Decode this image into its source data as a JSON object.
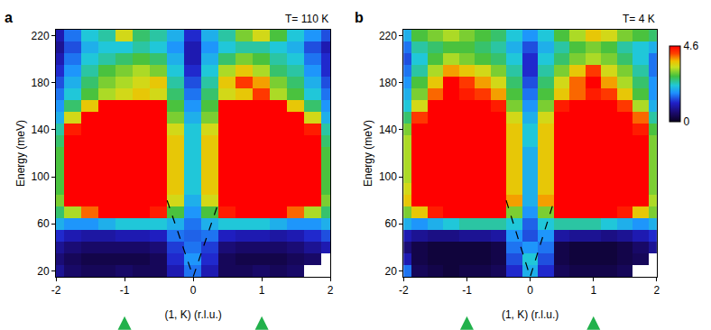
{
  "chart_data": [
    {
      "type": "heatmap",
      "panel_label": "a",
      "annotation": "T= 110 K",
      "x_label": "(1, K) (r.l.u.)",
      "y_label": "Energy (meV)",
      "xlim": [
        -2,
        2
      ],
      "xticks": [
        -2,
        -1,
        0,
        1,
        2
      ],
      "ylim": [
        15,
        225
      ],
      "yticks": [
        20,
        60,
        100,
        140,
        180,
        220
      ],
      "x": [
        -2,
        -1.75,
        -1.5,
        -1.25,
        -1,
        -0.75,
        -0.5,
        -0.25,
        0,
        0.25,
        0.5,
        0.75,
        1,
        1.25,
        1.5,
        1.75,
        2
      ],
      "y": [
        20,
        30,
        40,
        50,
        60,
        70,
        80,
        90,
        100,
        110,
        120,
        130,
        140,
        150,
        160,
        170,
        180,
        190,
        200,
        210,
        220
      ],
      "z": [
        [
          0.8,
          0.5,
          0.4,
          0.4,
          0.5,
          0.4,
          0.4,
          1.0,
          1.6,
          1.0,
          0.4,
          0.4,
          0.5,
          0.4,
          0.5,
          null,
          null
        ],
        [
          0.6,
          0.4,
          0.3,
          0.3,
          0.3,
          0.3,
          0.4,
          1.2,
          1.8,
          1.2,
          0.4,
          0.3,
          0.3,
          0.3,
          0.4,
          0.5,
          null
        ],
        [
          0.8,
          0.6,
          0.5,
          0.5,
          0.5,
          0.5,
          0.6,
          1.3,
          1.6,
          1.3,
          0.6,
          0.5,
          0.5,
          0.5,
          0.6,
          0.8,
          1.0
        ],
        [
          1.2,
          1.0,
          0.9,
          0.9,
          1.0,
          1.0,
          1.1,
          1.6,
          1.5,
          1.6,
          1.1,
          1.0,
          1.0,
          0.9,
          1.0,
          1.2,
          1.4
        ],
        [
          2.0,
          1.8,
          1.8,
          2.0,
          2.2,
          2.2,
          2.2,
          2.0,
          1.6,
          2.0,
          2.2,
          2.2,
          2.2,
          2.0,
          1.8,
          1.8,
          2.0
        ],
        [
          2.6,
          3.2,
          4.0,
          4.6,
          4.6,
          4.6,
          4.4,
          2.8,
          1.8,
          2.8,
          4.4,
          4.6,
          4.6,
          4.6,
          4.0,
          3.2,
          2.6
        ],
        [
          3.0,
          4.6,
          4.6,
          4.6,
          4.6,
          4.6,
          4.6,
          3.4,
          2.0,
          3.4,
          4.6,
          4.6,
          4.6,
          4.6,
          4.6,
          4.6,
          3.0
        ],
        [
          2.8,
          4.6,
          4.6,
          4.6,
          4.6,
          4.6,
          4.6,
          3.6,
          2.2,
          3.6,
          4.6,
          4.6,
          4.6,
          4.6,
          4.6,
          4.6,
          2.8
        ],
        [
          2.8,
          4.6,
          4.6,
          4.6,
          4.6,
          4.6,
          4.6,
          3.6,
          2.2,
          3.6,
          4.6,
          4.6,
          4.6,
          4.6,
          4.6,
          4.6,
          2.8
        ],
        [
          2.8,
          4.6,
          4.6,
          4.6,
          4.6,
          4.6,
          4.6,
          3.6,
          2.2,
          3.6,
          4.6,
          4.6,
          4.6,
          4.6,
          4.6,
          4.6,
          2.8
        ],
        [
          2.8,
          4.6,
          4.6,
          4.6,
          4.6,
          4.6,
          4.6,
          3.6,
          2.2,
          3.6,
          4.6,
          4.6,
          4.6,
          4.6,
          4.6,
          4.6,
          2.8
        ],
        [
          2.6,
          4.6,
          4.6,
          4.6,
          4.6,
          4.6,
          4.6,
          3.6,
          2.2,
          3.6,
          4.6,
          4.6,
          4.6,
          4.6,
          4.6,
          4.6,
          2.6
        ],
        [
          2.4,
          4.4,
          4.6,
          4.6,
          4.6,
          4.6,
          4.6,
          3.4,
          2.2,
          3.4,
          4.6,
          4.6,
          4.6,
          4.6,
          4.6,
          4.4,
          2.4
        ],
        [
          2.0,
          3.4,
          4.6,
          4.6,
          4.6,
          4.6,
          4.6,
          3.0,
          2.0,
          3.0,
          4.6,
          4.6,
          4.6,
          4.6,
          4.6,
          3.4,
          2.0
        ],
        [
          1.8,
          2.6,
          3.6,
          4.6,
          4.6,
          4.6,
          4.6,
          2.8,
          1.8,
          2.8,
          4.6,
          4.6,
          4.6,
          4.6,
          3.6,
          2.6,
          1.8
        ],
        [
          1.6,
          2.2,
          2.8,
          3.2,
          3.4,
          3.6,
          3.4,
          2.6,
          1.6,
          2.6,
          3.4,
          3.6,
          4.2,
          3.2,
          2.8,
          2.2,
          1.6
        ],
        [
          1.4,
          2.0,
          2.6,
          3.0,
          3.2,
          3.4,
          3.6,
          2.4,
          1.4,
          2.4,
          3.6,
          4.2,
          3.8,
          3.0,
          2.6,
          2.0,
          1.4
        ],
        [
          1.2,
          1.8,
          2.4,
          2.8,
          3.0,
          3.2,
          3.0,
          2.2,
          1.2,
          2.2,
          3.2,
          3.6,
          3.2,
          2.6,
          2.4,
          1.8,
          1.2
        ],
        [
          1.0,
          1.6,
          2.2,
          2.4,
          2.6,
          2.8,
          2.6,
          2.0,
          1.0,
          2.0,
          2.6,
          3.0,
          2.8,
          2.4,
          2.2,
          1.6,
          1.2
        ],
        [
          0.8,
          1.4,
          2.0,
          2.2,
          2.2,
          2.4,
          2.2,
          1.8,
          1.0,
          1.8,
          2.2,
          2.4,
          2.4,
          2.2,
          2.0,
          1.4,
          1.0
        ],
        [
          1.0,
          1.6,
          2.2,
          2.4,
          3.4,
          2.6,
          2.4,
          2.0,
          1.2,
          2.0,
          2.4,
          3.0,
          3.4,
          2.8,
          2.2,
          1.8,
          1.4
        ]
      ],
      "colorbar": {
        "range": [
          0,
          4.6
        ],
        "ticks": [
          0,
          4.6
        ]
      },
      "lines": [
        {
          "x": [
            -0.38,
            0,
            0.38
          ],
          "y": [
            80,
            15,
            80
          ],
          "color": "#000000",
          "line_style": "dash"
        }
      ],
      "arrows": [
        -1,
        1
      ]
    },
    {
      "type": "heatmap",
      "panel_label": "b",
      "annotation": "T= 4 K",
      "x_label": "(1, K) (r.l.u.)",
      "y_label": "Energy (meV)",
      "xlim": [
        -2,
        2
      ],
      "xticks": [
        -2,
        -1,
        0,
        1,
        2
      ],
      "ylim": [
        15,
        225
      ],
      "yticks": [
        20,
        60,
        100,
        140,
        180,
        220
      ],
      "x": [
        -2,
        -1.75,
        -1.5,
        -1.25,
        -1,
        -0.75,
        -0.5,
        -0.25,
        0,
        0.25,
        0.5,
        0.75,
        1,
        1.25,
        1.5,
        1.75,
        2
      ],
      "y": [
        20,
        30,
        40,
        50,
        60,
        70,
        80,
        90,
        100,
        110,
        120,
        130,
        140,
        150,
        160,
        170,
        180,
        190,
        200,
        210,
        220
      ],
      "z": [
        [
          1.6,
          0.4,
          0.3,
          0.2,
          0.3,
          0.3,
          0.4,
          1.2,
          2.0,
          1.2,
          0.4,
          0.3,
          0.3,
          0.3,
          0.4,
          null,
          null
        ],
        [
          1.0,
          0.3,
          0.2,
          0.2,
          0.2,
          0.2,
          0.3,
          1.4,
          2.2,
          1.4,
          0.3,
          0.2,
          0.2,
          0.2,
          0.3,
          0.4,
          null
        ],
        [
          0.6,
          0.3,
          0.2,
          0.2,
          0.2,
          0.2,
          0.3,
          1.6,
          1.8,
          1.6,
          0.3,
          0.2,
          0.2,
          0.2,
          0.3,
          0.5,
          0.8
        ],
        [
          1.0,
          0.8,
          0.7,
          0.7,
          0.8,
          0.8,
          0.9,
          1.8,
          1.4,
          1.8,
          0.9,
          0.8,
          0.8,
          0.7,
          0.8,
          1.0,
          1.2
        ],
        [
          2.0,
          1.8,
          2.0,
          2.2,
          2.4,
          2.4,
          2.4,
          2.2,
          1.5,
          2.2,
          2.4,
          2.4,
          2.4,
          2.2,
          2.0,
          1.8,
          2.0
        ],
        [
          3.0,
          3.6,
          4.4,
          4.6,
          4.6,
          4.6,
          4.6,
          3.0,
          1.8,
          3.0,
          4.6,
          4.6,
          4.6,
          4.6,
          4.4,
          3.6,
          3.0
        ],
        [
          3.6,
          4.6,
          4.6,
          4.6,
          4.6,
          4.6,
          4.6,
          3.8,
          2.0,
          3.8,
          4.6,
          4.6,
          4.6,
          4.6,
          4.6,
          4.6,
          3.2
        ],
        [
          3.4,
          4.6,
          4.6,
          4.6,
          4.6,
          4.6,
          4.6,
          3.6,
          2.0,
          3.6,
          4.6,
          4.6,
          4.6,
          4.6,
          4.6,
          4.6,
          3.0
        ],
        [
          3.2,
          4.6,
          4.6,
          4.6,
          4.6,
          4.6,
          4.6,
          3.6,
          2.0,
          3.6,
          4.6,
          4.6,
          4.6,
          4.6,
          4.6,
          4.6,
          3.0
        ],
        [
          3.2,
          4.6,
          4.6,
          4.6,
          4.6,
          4.6,
          4.6,
          3.6,
          2.0,
          3.6,
          4.6,
          4.6,
          4.6,
          4.6,
          4.6,
          4.6,
          3.0
        ],
        [
          3.2,
          4.6,
          4.6,
          4.6,
          4.6,
          4.6,
          4.6,
          3.6,
          2.0,
          3.6,
          4.6,
          4.6,
          4.6,
          4.6,
          4.6,
          4.6,
          3.0
        ],
        [
          3.2,
          4.6,
          4.6,
          4.6,
          4.6,
          4.6,
          4.6,
          3.6,
          2.2,
          3.6,
          4.6,
          4.6,
          4.6,
          4.6,
          4.6,
          4.6,
          3.0
        ],
        [
          3.0,
          4.6,
          4.6,
          4.6,
          4.6,
          4.6,
          4.6,
          3.6,
          2.2,
          3.6,
          4.6,
          4.6,
          4.6,
          4.6,
          4.6,
          4.4,
          2.8
        ],
        [
          2.6,
          4.2,
          4.6,
          4.6,
          4.6,
          4.6,
          4.6,
          3.4,
          2.0,
          3.4,
          4.6,
          4.6,
          4.6,
          4.6,
          4.6,
          4.0,
          2.4
        ],
        [
          2.2,
          3.4,
          4.6,
          4.6,
          4.6,
          4.6,
          4.4,
          3.0,
          1.8,
          3.0,
          4.4,
          4.6,
          4.6,
          4.6,
          4.2,
          3.2,
          2.0
        ],
        [
          2.0,
          3.0,
          4.0,
          4.6,
          4.4,
          4.2,
          3.8,
          2.8,
          1.6,
          2.8,
          3.6,
          4.0,
          4.4,
          4.2,
          3.6,
          2.8,
          1.8
        ],
        [
          1.8,
          2.8,
          3.6,
          4.6,
          4.2,
          3.8,
          3.4,
          2.6,
          1.4,
          2.6,
          3.4,
          4.0,
          4.6,
          3.8,
          3.2,
          2.6,
          1.8
        ],
        [
          1.6,
          2.4,
          3.2,
          3.8,
          3.6,
          3.4,
          3.0,
          2.4,
          1.2,
          2.4,
          3.0,
          3.6,
          4.2,
          3.4,
          3.0,
          2.4,
          1.6
        ],
        [
          1.4,
          2.2,
          2.8,
          3.2,
          3.0,
          2.8,
          2.6,
          2.2,
          1.2,
          2.2,
          2.6,
          3.0,
          3.2,
          3.0,
          2.6,
          2.2,
          1.6
        ],
        [
          1.6,
          2.4,
          2.6,
          2.8,
          2.8,
          2.6,
          2.4,
          2.0,
          1.4,
          2.0,
          2.4,
          2.8,
          3.0,
          2.8,
          2.4,
          2.2,
          2.0
        ],
        [
          2.0,
          2.8,
          3.0,
          3.2,
          3.0,
          2.8,
          2.6,
          2.2,
          1.8,
          2.2,
          2.8,
          3.2,
          3.6,
          3.4,
          3.0,
          2.8,
          2.6
        ]
      ],
      "colorbar": {
        "range": [
          0,
          4.6
        ],
        "ticks": [
          0,
          4.6
        ]
      },
      "lines": [
        {
          "x": [
            -0.38,
            0,
            0.38
          ],
          "y": [
            80,
            15,
            80
          ],
          "color": "#000000",
          "line_style": "dash"
        }
      ],
      "arrows": [
        -1,
        1
      ]
    }
  ]
}
